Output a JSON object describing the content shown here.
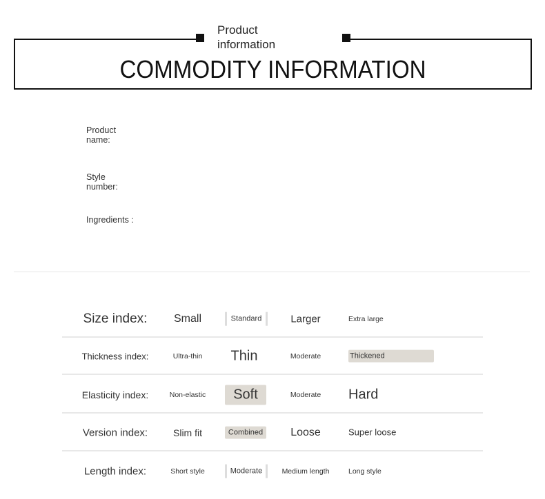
{
  "header": {
    "subtitle": "Product information",
    "title": "COMMODITY INFORMATION"
  },
  "fields": [
    {
      "label": "Product name:"
    },
    {
      "label": "Style number:"
    },
    {
      "label": "Ingredients :"
    }
  ],
  "highlight_color": "#dedad3",
  "rows": [
    {
      "label": "Size index:",
      "cells": [
        {
          "text": "Small"
        },
        {
          "text": "Standard",
          "highlight": "bracket"
        },
        {
          "text": "Larger"
        },
        {
          "text": "Extra large"
        }
      ]
    },
    {
      "label": "Thickness index:",
      "cells": [
        {
          "text": "Ultra-thin"
        },
        {
          "text": "Thin"
        },
        {
          "text": "Moderate"
        },
        {
          "text": "Thickened",
          "highlight": "fill"
        }
      ]
    },
    {
      "label": "Elasticity index:",
      "cells": [
        {
          "text": "Non-elastic"
        },
        {
          "text": "Soft",
          "highlight": "fill"
        },
        {
          "text": "Moderate"
        },
        {
          "text": "Hard"
        }
      ]
    },
    {
      "label": "Version index:",
      "cells": [
        {
          "text": "Slim fit"
        },
        {
          "text": "Combined",
          "highlight": "fill"
        },
        {
          "text": "Loose"
        },
        {
          "text": "Super loose"
        }
      ]
    },
    {
      "label": "Length index:",
      "cells": [
        {
          "text": "Short style"
        },
        {
          "text": "Moderate",
          "highlight": "bracket"
        },
        {
          "text": "Medium length"
        },
        {
          "text": "Long style"
        }
      ]
    }
  ]
}
